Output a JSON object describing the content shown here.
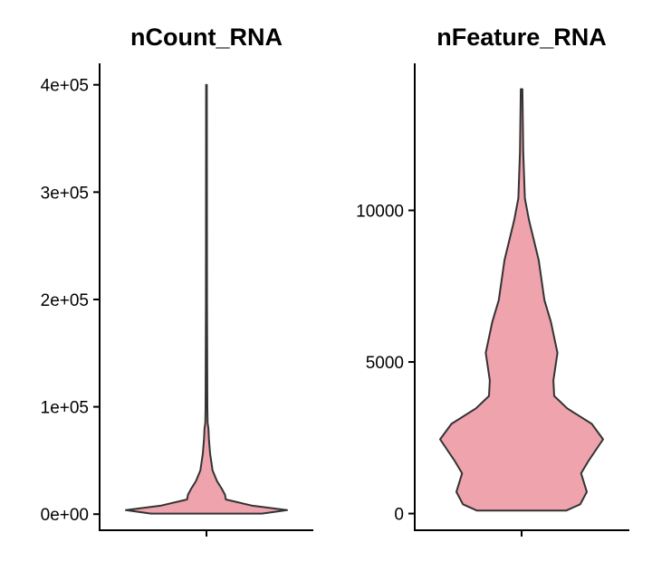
{
  "chart_data": [
    {
      "type": "violin",
      "title": "nCount_RNA",
      "xlabel": "",
      "ylabel": "",
      "ylim": [
        -15000,
        420000
      ],
      "yticks": [
        0,
        100000,
        200000,
        300000,
        400000
      ],
      "ytick_labels": [
        "0e+00",
        "1e+05",
        "2e+05",
        "3e+05",
        "4e+05"
      ],
      "fill_color": "#EEA3AD",
      "range": [
        500,
        400000
      ],
      "density_profile": [
        [
          500,
          0.69
        ],
        [
          3700,
          1.0
        ],
        [
          8000,
          0.56
        ],
        [
          13700,
          0.24
        ],
        [
          18000,
          0.23
        ],
        [
          23700,
          0.19
        ],
        [
          30900,
          0.13
        ],
        [
          40900,
          0.075
        ],
        [
          56600,
          0.045
        ],
        [
          70000,
          0.03
        ],
        [
          79400,
          0.025
        ],
        [
          85000,
          0.015
        ],
        [
          99000,
          0.011
        ],
        [
          200000,
          0.007
        ],
        [
          400000,
          0.005
        ]
      ]
    },
    {
      "type": "violin",
      "title": "nFeature_RNA",
      "xlabel": "",
      "ylabel": "",
      "ylim": [
        -550,
        14850
      ],
      "yticks": [
        0,
        5000,
        10000
      ],
      "ytick_labels": [
        "0",
        "5000",
        "10000"
      ],
      "fill_color": "#EEA3AD",
      "range": [
        100,
        14000
      ],
      "density_profile": [
        [
          100,
          0.55
        ],
        [
          306,
          0.72
        ],
        [
          714,
          0.8
        ],
        [
          1326,
          0.73
        ],
        [
          1734,
          0.82
        ],
        [
          2450,
          1.0
        ],
        [
          2960,
          0.86
        ],
        [
          3470,
          0.56
        ],
        [
          3880,
          0.4
        ],
        [
          4390,
          0.39
        ],
        [
          5300,
          0.44
        ],
        [
          6320,
          0.36
        ],
        [
          7040,
          0.28
        ],
        [
          8360,
          0.21
        ],
        [
          9690,
          0.09
        ],
        [
          10400,
          0.04
        ],
        [
          11930,
          0.02
        ],
        [
          14000,
          0.01
        ]
      ]
    }
  ]
}
